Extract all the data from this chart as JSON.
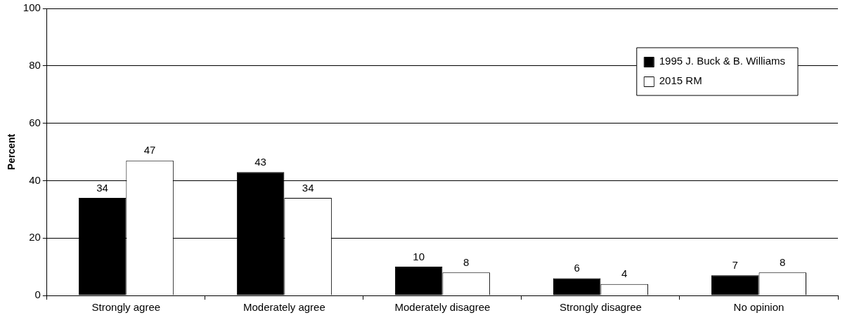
{
  "chart_data": {
    "type": "bar",
    "ylabel": "Percent",
    "categories": [
      "Strongly agree",
      "Moderately agree",
      "Moderately disagree",
      "Strongly disagree",
      "No opinion"
    ],
    "series": [
      {
        "name": "1995 J. Buck & B. Williams",
        "color": "#000000",
        "values": [
          34,
          43,
          10,
          6,
          7
        ]
      },
      {
        "name": "2015 RM",
        "color": "#ffffff",
        "values": [
          47,
          34,
          8,
          4,
          8
        ]
      }
    ],
    "ylim": [
      0,
      100
    ],
    "yticks": [
      0,
      20,
      40,
      60,
      80,
      100
    ],
    "grid": "y",
    "legend": "top right",
    "data_labels": true
  }
}
